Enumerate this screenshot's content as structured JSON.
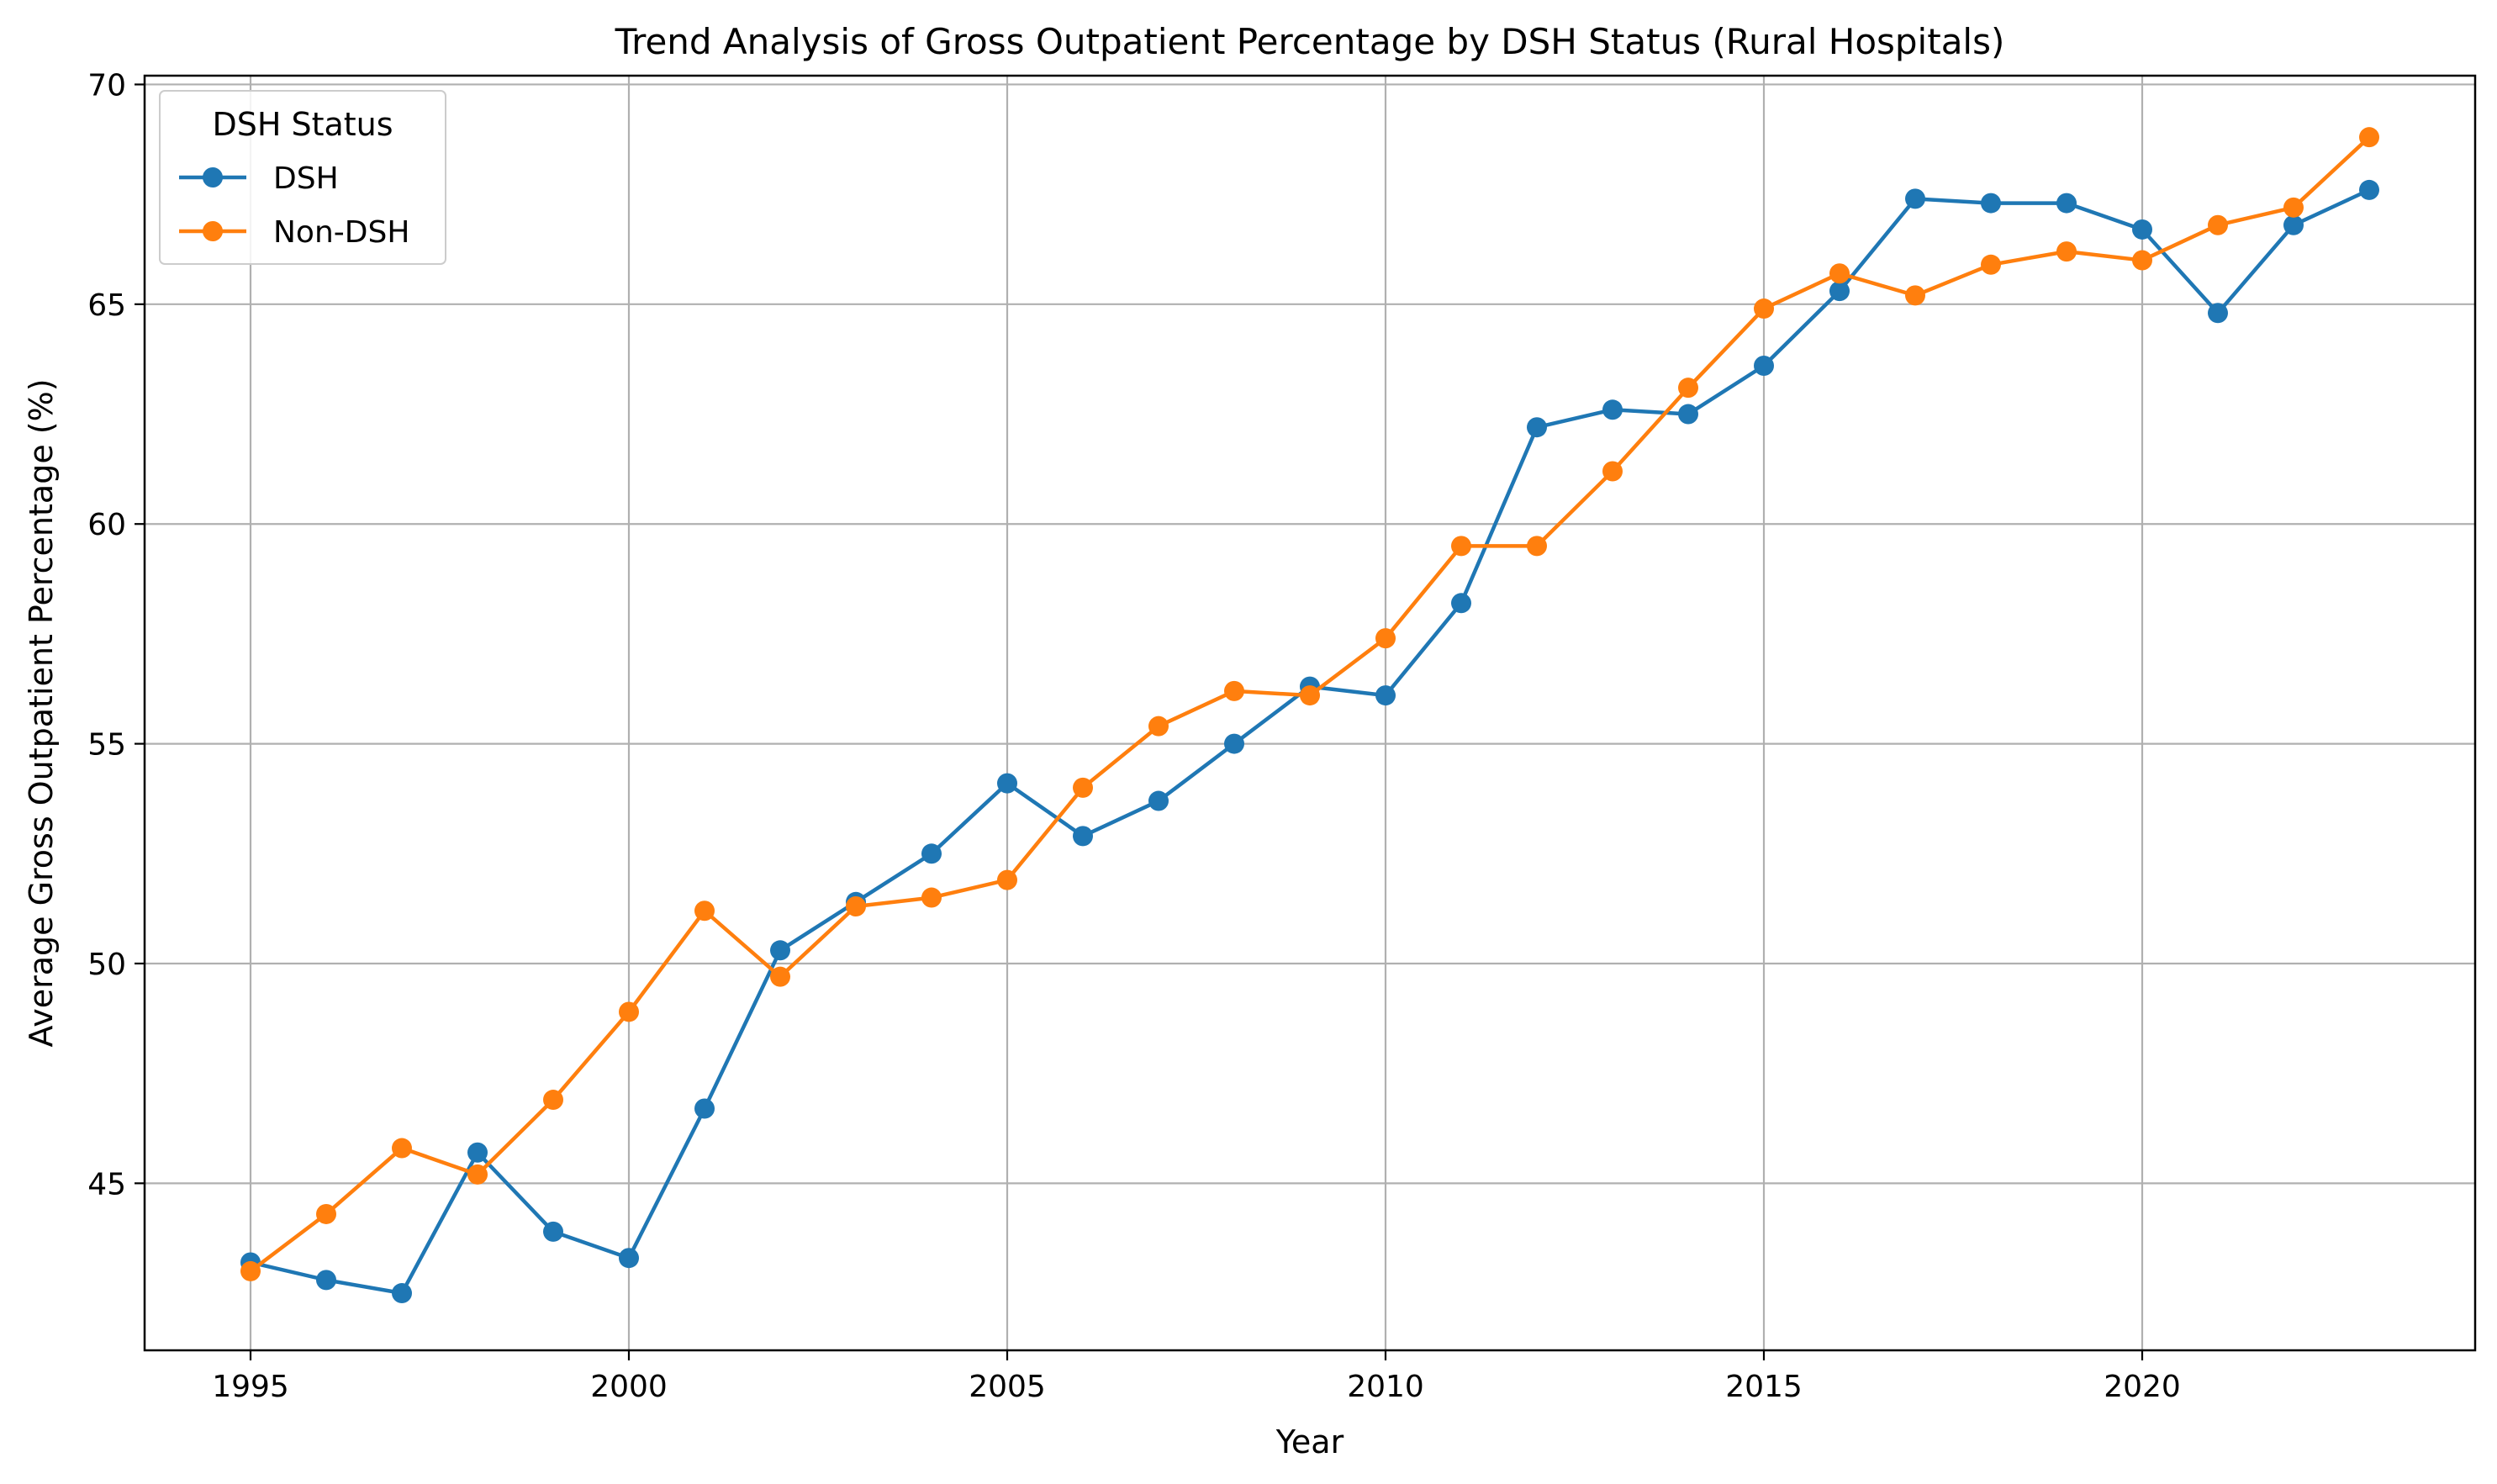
{
  "chart_data": {
    "type": "line",
    "title": "Trend Analysis of Gross Outpatient Percentage by DSH Status (Rural Hospitals)",
    "xlabel": "Year",
    "ylabel": "Average Gross Outpatient Percentage (%)",
    "xlim": [
      1993.6,
      2024.4
    ],
    "ylim": [
      41.2,
      70.2
    ],
    "xticks": [
      1995,
      2000,
      2005,
      2010,
      2015,
      2020
    ],
    "yticks": [
      45,
      50,
      55,
      60,
      65,
      70
    ],
    "grid": true,
    "legend": {
      "title": "DSH Status",
      "placement": "top-left"
    },
    "x": [
      1995,
      1996,
      1997,
      1998,
      1999,
      2000,
      2001,
      2002,
      2003,
      2004,
      2005,
      2006,
      2007,
      2008,
      2009,
      2010,
      2011,
      2012,
      2013,
      2014,
      2015,
      2016,
      2017,
      2018,
      2019,
      2020,
      2021,
      2022,
      2023
    ],
    "series": [
      {
        "name": "DSH",
        "color": "#1f77b4",
        "values": [
          43.2,
          42.8,
          42.5,
          45.7,
          43.9,
          43.3,
          46.7,
          50.3,
          51.4,
          52.5,
          54.1,
          52.9,
          53.7,
          55.0,
          56.3,
          56.1,
          58.2,
          62.2,
          62.6,
          62.5,
          63.6,
          65.3,
          67.4,
          67.3,
          67.3,
          66.7,
          64.8,
          66.8,
          67.6
        ]
      },
      {
        "name": "Non-DSH",
        "color": "#ff7f0e",
        "values": [
          43.0,
          44.3,
          45.8,
          45.2,
          46.9,
          48.9,
          51.2,
          49.7,
          51.3,
          51.5,
          51.9,
          54.0,
          55.4,
          56.2,
          56.1,
          57.4,
          59.5,
          59.5,
          61.2,
          63.1,
          64.9,
          65.7,
          65.2,
          65.9,
          66.2,
          66.0,
          66.8,
          67.2,
          68.8
        ]
      }
    ]
  }
}
